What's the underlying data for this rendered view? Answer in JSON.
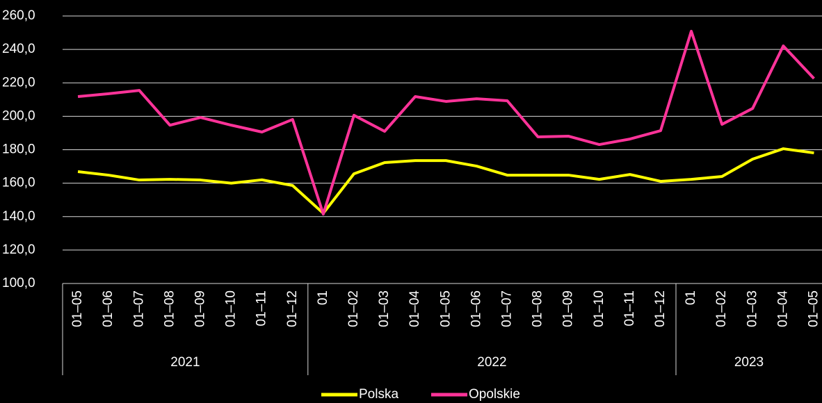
{
  "chart_data": {
    "type": "line",
    "categories": [
      "01–05",
      "01–06",
      "01–07",
      "01–08",
      "01–09",
      "01–10",
      "01–11",
      "01–12",
      "01",
      "01–02",
      "01–03",
      "01–04",
      "01–05",
      "01–06",
      "01–07",
      "01–08",
      "01–09",
      "01–10",
      "01–11",
      "01–12",
      "01",
      "01–02",
      "01–03",
      "01–04",
      "01–05"
    ],
    "category_groups": [
      "2021",
      "2022",
      "2023"
    ],
    "series": [
      {
        "name": "Polska",
        "color": "#ffff00",
        "values": [
          166.9,
          164.8,
          161.9,
          162.3,
          161.9,
          160.0,
          162.0,
          158.6,
          142.0,
          165.6,
          172.3,
          173.5,
          173.5,
          170.2,
          164.8,
          164.8,
          164.8,
          162.3,
          165.2,
          161.1,
          162.3,
          164.0,
          174.4,
          180.6,
          178.1
        ]
      },
      {
        "name": "Opolskie",
        "color": "#ff3399",
        "values": [
          211.8,
          213.5,
          215.5,
          194.7,
          199.3,
          194.7,
          190.6,
          198.1,
          141.5,
          200.6,
          191.0,
          211.8,
          208.9,
          210.5,
          209.3,
          187.7,
          188.1,
          183.1,
          186.4,
          191.4,
          250.9,
          195.2,
          204.7,
          242.1,
          222.6
        ]
      }
    ],
    "ylim": [
      100,
      260
    ],
    "yticks": [
      {
        "value": 100,
        "label": "100,0"
      },
      {
        "value": 120,
        "label": "120,0"
      },
      {
        "value": 140,
        "label": "140,0"
      },
      {
        "value": 160,
        "label": "160,0"
      },
      {
        "value": 180,
        "label": "180,0"
      },
      {
        "value": 200,
        "label": "200,0"
      },
      {
        "value": 220,
        "label": "220,0"
      },
      {
        "value": 240,
        "label": "240,0"
      },
      {
        "value": 260,
        "label": "260,0"
      }
    ],
    "grid": true,
    "legend": "bottom"
  }
}
